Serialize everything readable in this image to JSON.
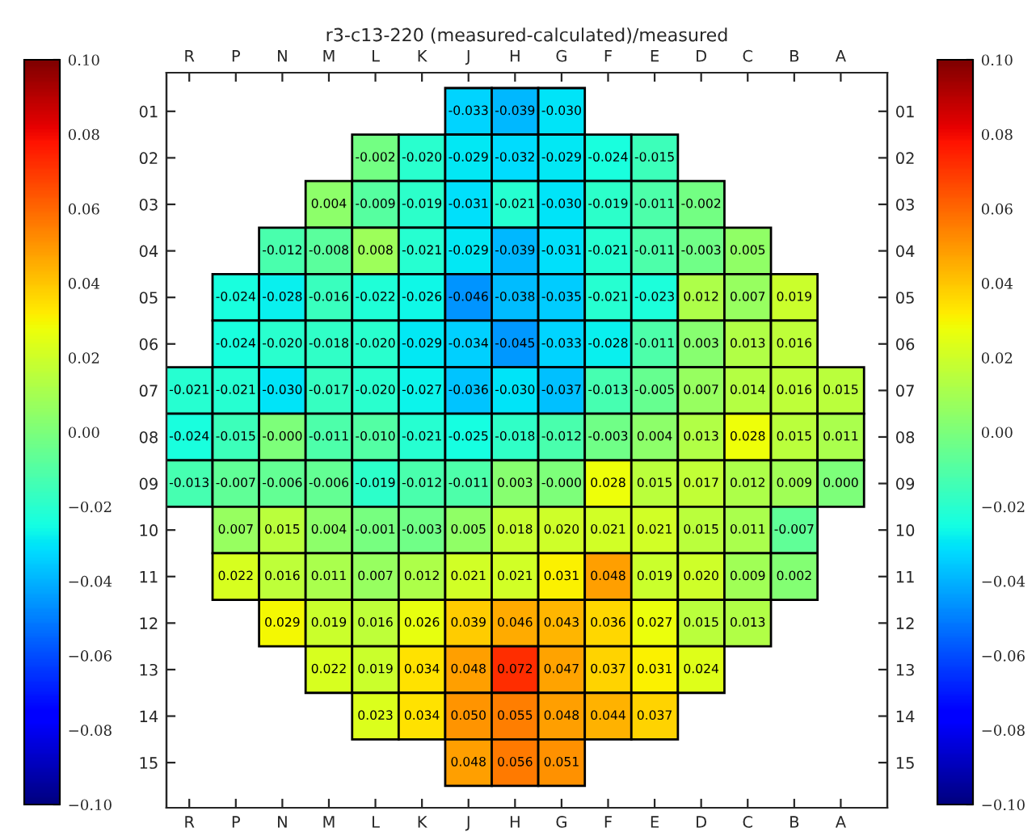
{
  "chart_data": {
    "type": "heatmap",
    "title": "r3-c13-220 (measured-calculated)/measured",
    "categories": [
      "R",
      "P",
      "N",
      "M",
      "L",
      "K",
      "J",
      "H",
      "G",
      "F",
      "E",
      "D",
      "C",
      "B",
      "A"
    ],
    "y_categories": [
      "01",
      "02",
      "03",
      "04",
      "05",
      "06",
      "07",
      "08",
      "09",
      "10",
      "11",
      "12",
      "13",
      "14",
      "15"
    ],
    "y2_categories": [
      "01",
      "02",
      "03",
      "04",
      "05",
      "06",
      "07",
      "08",
      "09",
      "10",
      "11",
      "12",
      "13",
      "14",
      "15"
    ],
    "cells": [
      [
        null,
        null,
        null,
        null,
        null,
        null,
        -0.033,
        -0.039,
        -0.03,
        null,
        null,
        null,
        null,
        null,
        null
      ],
      [
        null,
        null,
        null,
        null,
        -0.002,
        -0.02,
        -0.029,
        -0.032,
        -0.029,
        -0.024,
        -0.015,
        null,
        null,
        null,
        null
      ],
      [
        null,
        null,
        null,
        0.004,
        -0.009,
        -0.019,
        -0.031,
        -0.021,
        -0.03,
        -0.019,
        -0.011,
        -0.002,
        null,
        null,
        null
      ],
      [
        null,
        null,
        -0.012,
        -0.008,
        0.008,
        -0.021,
        -0.029,
        -0.039,
        -0.031,
        -0.021,
        -0.011,
        -0.003,
        0.005,
        null,
        null
      ],
      [
        null,
        -0.024,
        -0.028,
        -0.016,
        -0.022,
        -0.026,
        -0.046,
        -0.038,
        -0.035,
        -0.021,
        -0.023,
        0.012,
        0.007,
        0.019,
        null
      ],
      [
        null,
        -0.024,
        -0.02,
        -0.018,
        -0.02,
        -0.029,
        -0.034,
        -0.045,
        -0.033,
        -0.028,
        -0.011,
        0.003,
        0.013,
        0.016,
        null
      ],
      [
        -0.021,
        -0.021,
        -0.03,
        -0.017,
        -0.02,
        -0.027,
        -0.036,
        -0.03,
        -0.037,
        -0.013,
        -0.005,
        0.007,
        0.014,
        0.016,
        0.015
      ],
      [
        -0.024,
        -0.015,
        0.0,
        -0.011,
        -0.01,
        -0.021,
        -0.025,
        -0.018,
        -0.012,
        -0.003,
        0.004,
        0.013,
        0.028,
        0.015,
        0.011
      ],
      [
        -0.013,
        -0.007,
        -0.006,
        -0.006,
        -0.019,
        -0.012,
        -0.011,
        0.003,
        0.0,
        0.028,
        0.015,
        0.017,
        0.012,
        0.009,
        0.0
      ],
      [
        null,
        0.007,
        0.015,
        0.004,
        -0.001,
        -0.003,
        0.005,
        0.018,
        0.02,
        0.021,
        0.021,
        0.015,
        0.011,
        -0.007,
        null
      ],
      [
        null,
        0.022,
        0.016,
        0.011,
        0.007,
        0.012,
        0.021,
        0.021,
        0.031,
        0.048,
        0.019,
        0.02,
        0.009,
        0.002,
        null
      ],
      [
        null,
        null,
        0.029,
        0.019,
        0.016,
        0.026,
        0.039,
        0.046,
        0.043,
        0.036,
        0.027,
        0.015,
        0.013,
        null,
        null
      ],
      [
        null,
        null,
        null,
        0.022,
        0.019,
        0.034,
        0.048,
        0.072,
        0.047,
        0.037,
        0.031,
        0.024,
        null,
        null,
        null
      ],
      [
        null,
        null,
        null,
        null,
        0.023,
        0.034,
        0.05,
        0.055,
        0.048,
        0.044,
        0.037,
        null,
        null,
        null,
        null
      ],
      [
        null,
        null,
        null,
        null,
        null,
        null,
        0.048,
        0.056,
        0.051,
        null,
        null,
        null,
        null,
        null,
        null
      ]
    ],
    "cell_labels": [
      [
        null,
        null,
        null,
        null,
        null,
        null,
        "-0.033",
        "-0.039",
        "-0.030",
        null,
        null,
        null,
        null,
        null,
        null
      ],
      [
        null,
        null,
        null,
        null,
        "-0.002",
        "-0.020",
        "-0.029",
        "-0.032",
        "-0.029",
        "-0.024",
        "-0.015",
        null,
        null,
        null,
        null
      ],
      [
        null,
        null,
        null,
        "0.004",
        "-0.009",
        "-0.019",
        "-0.031",
        "-0.021",
        "-0.030",
        "-0.019",
        "-0.011",
        "-0.002",
        null,
        null,
        null
      ],
      [
        null,
        null,
        "-0.012",
        "-0.008",
        "0.008",
        "-0.021",
        "-0.029",
        "-0.039",
        "-0.031",
        "-0.021",
        "-0.011",
        "-0.003",
        "0.005",
        null,
        null
      ],
      [
        null,
        "-0.024",
        "-0.028",
        "-0.016",
        "-0.022",
        "-0.026",
        "-0.046",
        "-0.038",
        "-0.035",
        "-0.021",
        "-0.023",
        "0.012",
        "0.007",
        "0.019",
        null
      ],
      [
        null,
        "-0.024",
        "-0.020",
        "-0.018",
        "-0.020",
        "-0.029",
        "-0.034",
        "-0.045",
        "-0.033",
        "-0.028",
        "-0.011",
        "0.003",
        "0.013",
        "0.016",
        null
      ],
      [
        "-0.021",
        "-0.021",
        "-0.030",
        "-0.017",
        "-0.020",
        "-0.027",
        "-0.036",
        "-0.030",
        "-0.037",
        "-0.013",
        "-0.005",
        "0.007",
        "0.014",
        "0.016",
        "0.015"
      ],
      [
        "-0.024",
        "-0.015",
        "-0.000",
        "-0.011",
        "-0.010",
        "-0.021",
        "-0.025",
        "-0.018",
        "-0.012",
        "-0.003",
        "0.004",
        "0.013",
        "0.028",
        "0.015",
        "0.011"
      ],
      [
        "-0.013",
        "-0.007",
        "-0.006",
        "-0.006",
        "-0.019",
        "-0.012",
        "-0.011",
        "0.003",
        "-0.000",
        "0.028",
        "0.015",
        "0.017",
        "0.012",
        "0.009",
        "0.000"
      ],
      [
        null,
        "0.007",
        "0.015",
        "0.004",
        "-0.001",
        "-0.003",
        "0.005",
        "0.018",
        "0.020",
        "0.021",
        "0.021",
        "0.015",
        "0.011",
        "-0.007",
        null
      ],
      [
        null,
        "0.022",
        "0.016",
        "0.011",
        "0.007",
        "0.012",
        "0.021",
        "0.021",
        "0.031",
        "0.048",
        "0.019",
        "0.020",
        "0.009",
        "0.002",
        null
      ],
      [
        null,
        null,
        "0.029",
        "0.019",
        "0.016",
        "0.026",
        "0.039",
        "0.046",
        "0.043",
        "0.036",
        "0.027",
        "0.015",
        "0.013",
        null,
        null
      ],
      [
        null,
        null,
        null,
        "0.022",
        "0.019",
        "0.034",
        "0.048",
        "0.072",
        "0.047",
        "0.037",
        "0.031",
        "0.024",
        null,
        null,
        null
      ],
      [
        null,
        null,
        null,
        null,
        "0.023",
        "0.034",
        "0.050",
        "0.055",
        "0.048",
        "0.044",
        "0.037",
        null,
        null,
        null,
        null
      ],
      [
        null,
        null,
        null,
        null,
        null,
        null,
        "0.048",
        "0.056",
        "0.051",
        null,
        null,
        null,
        null,
        null,
        null
      ]
    ],
    "clim": [
      -0.1,
      0.1
    ],
    "cticks": [
      {
        "value": -0.1,
        "label": "−0.10"
      },
      {
        "value": -0.08,
        "label": "−0.08"
      },
      {
        "value": -0.06,
        "label": "−0.06"
      },
      {
        "value": -0.04,
        "label": "−0.04"
      },
      {
        "value": -0.02,
        "label": "−0.02"
      },
      {
        "value": 0.0,
        "label": "0.00"
      },
      {
        "value": 0.02,
        "label": "0.02"
      },
      {
        "value": 0.04,
        "label": "0.04"
      },
      {
        "value": 0.06,
        "label": "0.06"
      },
      {
        "value": 0.08,
        "label": "0.08"
      },
      {
        "value": 0.1,
        "label": "0.10"
      }
    ]
  }
}
